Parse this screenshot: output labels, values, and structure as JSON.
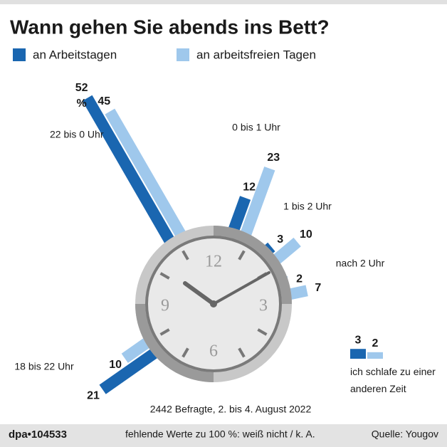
{
  "chart_data": {
    "type": "radial-bar",
    "title": "Wann gehen Sie abends ins Bett?",
    "categories": [
      "22 bis 0 Uhr",
      "0 bis 1 Uhr",
      "1 bis 2 Uhr",
      "nach 2 Uhr",
      "18 bis 22 Uhr",
      "ich schlafe zu einer anderen Zeit"
    ],
    "series": [
      {
        "name": "an Arbeitstagen",
        "color": "#1a66b0",
        "values": [
          52,
          12,
          3,
          2,
          21,
          3
        ]
      },
      {
        "name": "an arbeitsfreien Tagen",
        "color": "#9fc8ec",
        "values": [
          45,
          23,
          10,
          7,
          10,
          2
        ]
      }
    ],
    "unit": "%",
    "clock_numerals": [
      "12",
      "3",
      "6",
      "9"
    ],
    "note": "2442 Befragte, 2. bis 4. August 2022",
    "footer": {
      "id": "dpa•104533",
      "remark": "fehlende Werte zu 100 %: weiß nicht / k. A.",
      "source": "Quelle: Yougov"
    }
  }
}
